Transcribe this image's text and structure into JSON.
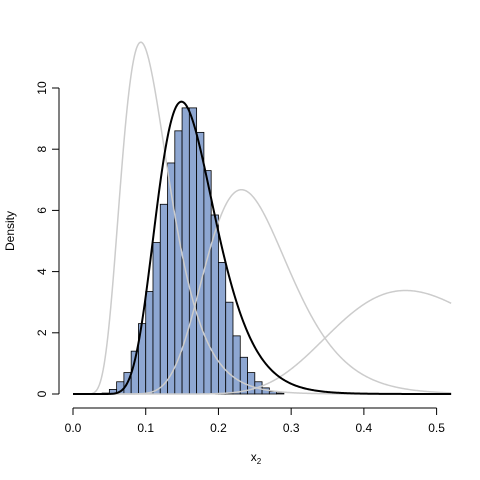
{
  "chart_data": {
    "type": "bar",
    "title": "",
    "xlabel": "x",
    "xlabel_subscript": "2",
    "ylabel": "Density",
    "xlim": [
      0.0,
      0.52
    ],
    "ylim": [
      0,
      10
    ],
    "x_ticks": [
      "0.0",
      "0.1",
      "0.2",
      "0.3",
      "0.4",
      "0.5"
    ],
    "y_ticks": [
      "0",
      "2",
      "4",
      "6",
      "8",
      "10"
    ],
    "grid": false,
    "histogram": {
      "bin_width": 0.01,
      "bin_edges_start": 0.03,
      "values": [
        0.01,
        0.03,
        0.15,
        0.4,
        0.7,
        1.4,
        2.3,
        3.35,
        4.95,
        6.2,
        7.55,
        8.6,
        9.35,
        9.35,
        8.55,
        7.3,
        5.85,
        4.3,
        3.0,
        1.9,
        1.2,
        0.7,
        0.4,
        0.2,
        0.08,
        0.03
      ],
      "fill_color": "#8ea7d2",
      "edge_color": "#000000"
    },
    "curves": [
      {
        "role": "fitted-density",
        "color": "#000000",
        "width": 2,
        "dist": "lognormal",
        "meanlog": -1.83,
        "sdlog": 0.27
      },
      {
        "role": "comparison-density-1",
        "color": "#cccccc",
        "width": 1.5,
        "dist": "lognormal",
        "meanlog": -2.25,
        "sdlog": 0.35
      },
      {
        "role": "comparison-density-2",
        "color": "#cccccc",
        "width": 1.5,
        "dist": "lognormal",
        "meanlog": -1.4,
        "sdlog": 0.25
      },
      {
        "role": "comparison-density-3",
        "color": "#cccccc",
        "width": 1.5,
        "dist": "lognormal",
        "meanlog": -0.72,
        "sdlog": 0.25
      }
    ]
  }
}
